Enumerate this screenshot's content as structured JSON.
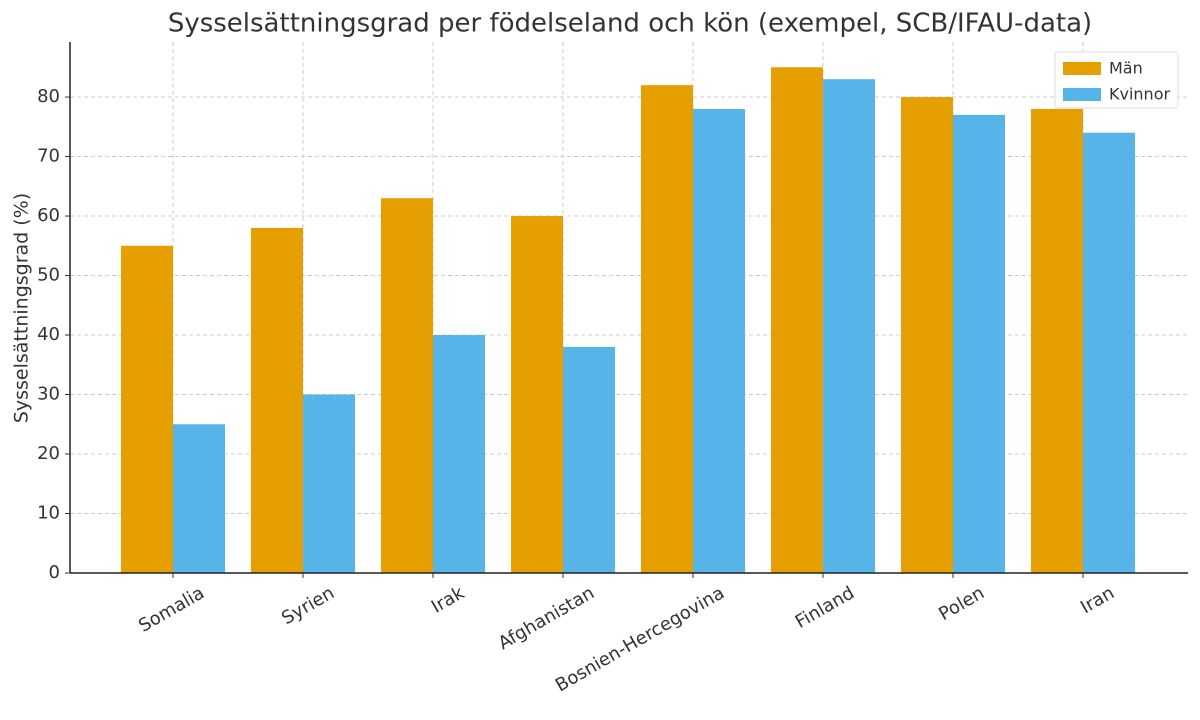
{
  "chart_data": {
    "type": "bar",
    "title": "Sysselsättningsgrad per födelseland och kön (exempel, SCB/IFAU-data)",
    "y_label": "Sysselsättningsgrad (%)",
    "categories": [
      "Somalia",
      "Syrien",
      "Irak",
      "Afghanistan",
      "Bosnien-Hercegovina",
      "Finland",
      "Polen",
      "Iran"
    ],
    "series": [
      {
        "name": "Män",
        "color": "#E69F00",
        "values": [
          55,
          58,
          63,
          60,
          82,
          85,
          80,
          78
        ]
      },
      {
        "name": "Kvinnor",
        "color": "#56B4E9",
        "values": [
          25,
          30,
          40,
          38,
          78,
          83,
          77,
          74
        ]
      }
    ],
    "ylim": [
      0,
      89.25
    ],
    "yticks": [
      0,
      10,
      20,
      30,
      40,
      50,
      60,
      70,
      80
    ],
    "grid": true,
    "legend": "upper right"
  }
}
